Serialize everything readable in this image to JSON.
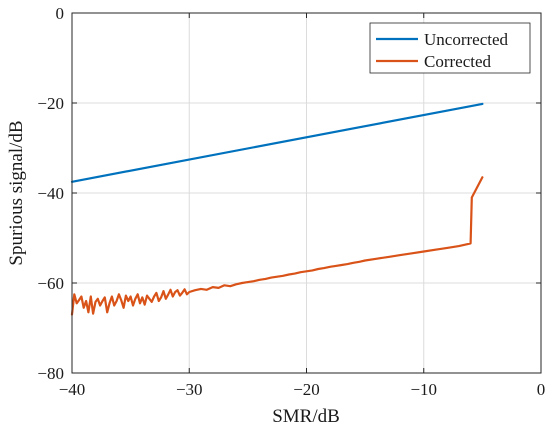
{
  "chart_data": {
    "type": "line",
    "title": "",
    "xlabel": "SMR/dB",
    "ylabel": "Spurious signal/dB",
    "xlim": [
      -40,
      0
    ],
    "ylim": [
      -80,
      0
    ],
    "xticks": [
      -40,
      -30,
      -20,
      -10,
      0
    ],
    "yticks": [
      0,
      -20,
      -40,
      -60,
      -80
    ],
    "xtick_labels": [
      "−40",
      "−30",
      "−20",
      "−10",
      "0"
    ],
    "ytick_labels": [
      "0",
      "−20",
      "−40",
      "−60",
      "−80"
    ],
    "grid": true,
    "legend_position": "top-right",
    "series": [
      {
        "name": "Uncorrected",
        "color": "#0072BD",
        "x": [
          -40,
          -5
        ],
        "y": [
          -37.5,
          -20.2
        ]
      },
      {
        "name": "Corrected",
        "color": "#D95319",
        "x": [
          -40,
          -39.8,
          -39.6,
          -39.4,
          -39.2,
          -39.0,
          -38.8,
          -38.6,
          -38.4,
          -38.2,
          -38.0,
          -37.8,
          -37.6,
          -37.4,
          -37.2,
          -37.0,
          -36.8,
          -36.6,
          -36.4,
          -36.2,
          -36.0,
          -35.8,
          -35.6,
          -35.4,
          -35.2,
          -35.0,
          -34.8,
          -34.6,
          -34.4,
          -34.2,
          -34.0,
          -33.8,
          -33.6,
          -33.4,
          -33.2,
          -33.0,
          -32.8,
          -32.6,
          -32.4,
          -32.2,
          -32.0,
          -31.8,
          -31.6,
          -31.4,
          -31.2,
          -31.0,
          -30.8,
          -30.6,
          -30.4,
          -30.2,
          -30.0,
          -29.5,
          -29.0,
          -28.5,
          -28.0,
          -27.5,
          -27.0,
          -26.5,
          -26.0,
          -25.5,
          -25.0,
          -24.5,
          -24.0,
          -23.5,
          -23.0,
          -22.5,
          -22.0,
          -21.5,
          -21.0,
          -20.5,
          -20.0,
          -19.5,
          -19.0,
          -18.5,
          -18.0,
          -17.5,
          -17.0,
          -16.5,
          -16.0,
          -15.5,
          -15.0,
          -14.0,
          -13.0,
          -12.0,
          -11.0,
          -10.0,
          -9.0,
          -8.0,
          -7.0,
          -6.0,
          -5.9,
          -5.0
        ],
        "y": [
          -67.0,
          -62.5,
          -64.5,
          -63.8,
          -63.0,
          -65.5,
          -64.0,
          -66.5,
          -63.0,
          -66.8,
          -64.2,
          -63.5,
          -65.0,
          -64.0,
          -63.2,
          -66.5,
          -64.5,
          -63.0,
          -65.0,
          -64.0,
          -62.5,
          -63.8,
          -65.5,
          -62.8,
          -64.0,
          -63.0,
          -65.0,
          -63.5,
          -62.5,
          -64.5,
          -63.2,
          -64.8,
          -62.8,
          -63.5,
          -64.2,
          -63.0,
          -62.2,
          -64.0,
          -63.2,
          -61.8,
          -63.5,
          -62.6,
          -61.5,
          -63.0,
          -62.0,
          -61.6,
          -62.8,
          -62.2,
          -61.4,
          -62.5,
          -62.0,
          -61.6,
          -61.3,
          -61.5,
          -60.9,
          -61.1,
          -60.5,
          -60.7,
          -60.3,
          -60.0,
          -59.8,
          -59.6,
          -59.3,
          -59.1,
          -58.8,
          -58.6,
          -58.4,
          -58.1,
          -57.9,
          -57.6,
          -57.4,
          -57.2,
          -56.9,
          -56.7,
          -56.4,
          -56.2,
          -56.0,
          -55.8,
          -55.5,
          -55.3,
          -55.0,
          -54.6,
          -54.2,
          -53.8,
          -53.4,
          -53.0,
          -52.6,
          -52.2,
          -51.8,
          -51.2,
          -41.0,
          -36.5
        ]
      }
    ]
  }
}
